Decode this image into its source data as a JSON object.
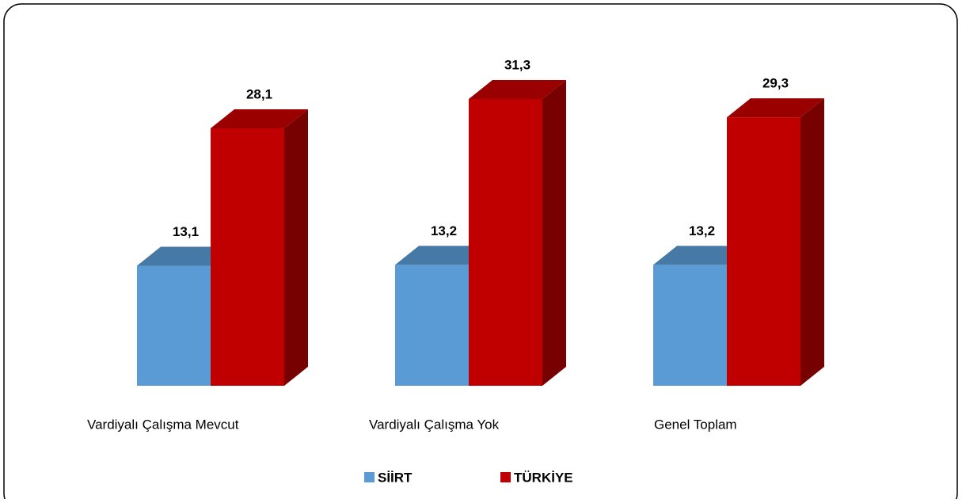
{
  "chart_data": {
    "type": "bar3d",
    "categories": [
      "Vardiyalı Çalışma Mevcut",
      "Vardiyalı Çalışma Yok",
      "Genel Toplam"
    ],
    "series": [
      {
        "name": "SİİRT",
        "color": "#5b9bd5",
        "values": [
          13.1,
          13.2,
          13.2
        ],
        "value_labels": [
          "13,1",
          "13,2",
          "13,2"
        ]
      },
      {
        "name": "TÜRKİYE",
        "color": "#c00000",
        "values": [
          28.1,
          31.3,
          29.3
        ],
        "value_labels": [
          "28,1",
          "31,3",
          "29,3"
        ]
      }
    ],
    "legend": "bottom"
  }
}
